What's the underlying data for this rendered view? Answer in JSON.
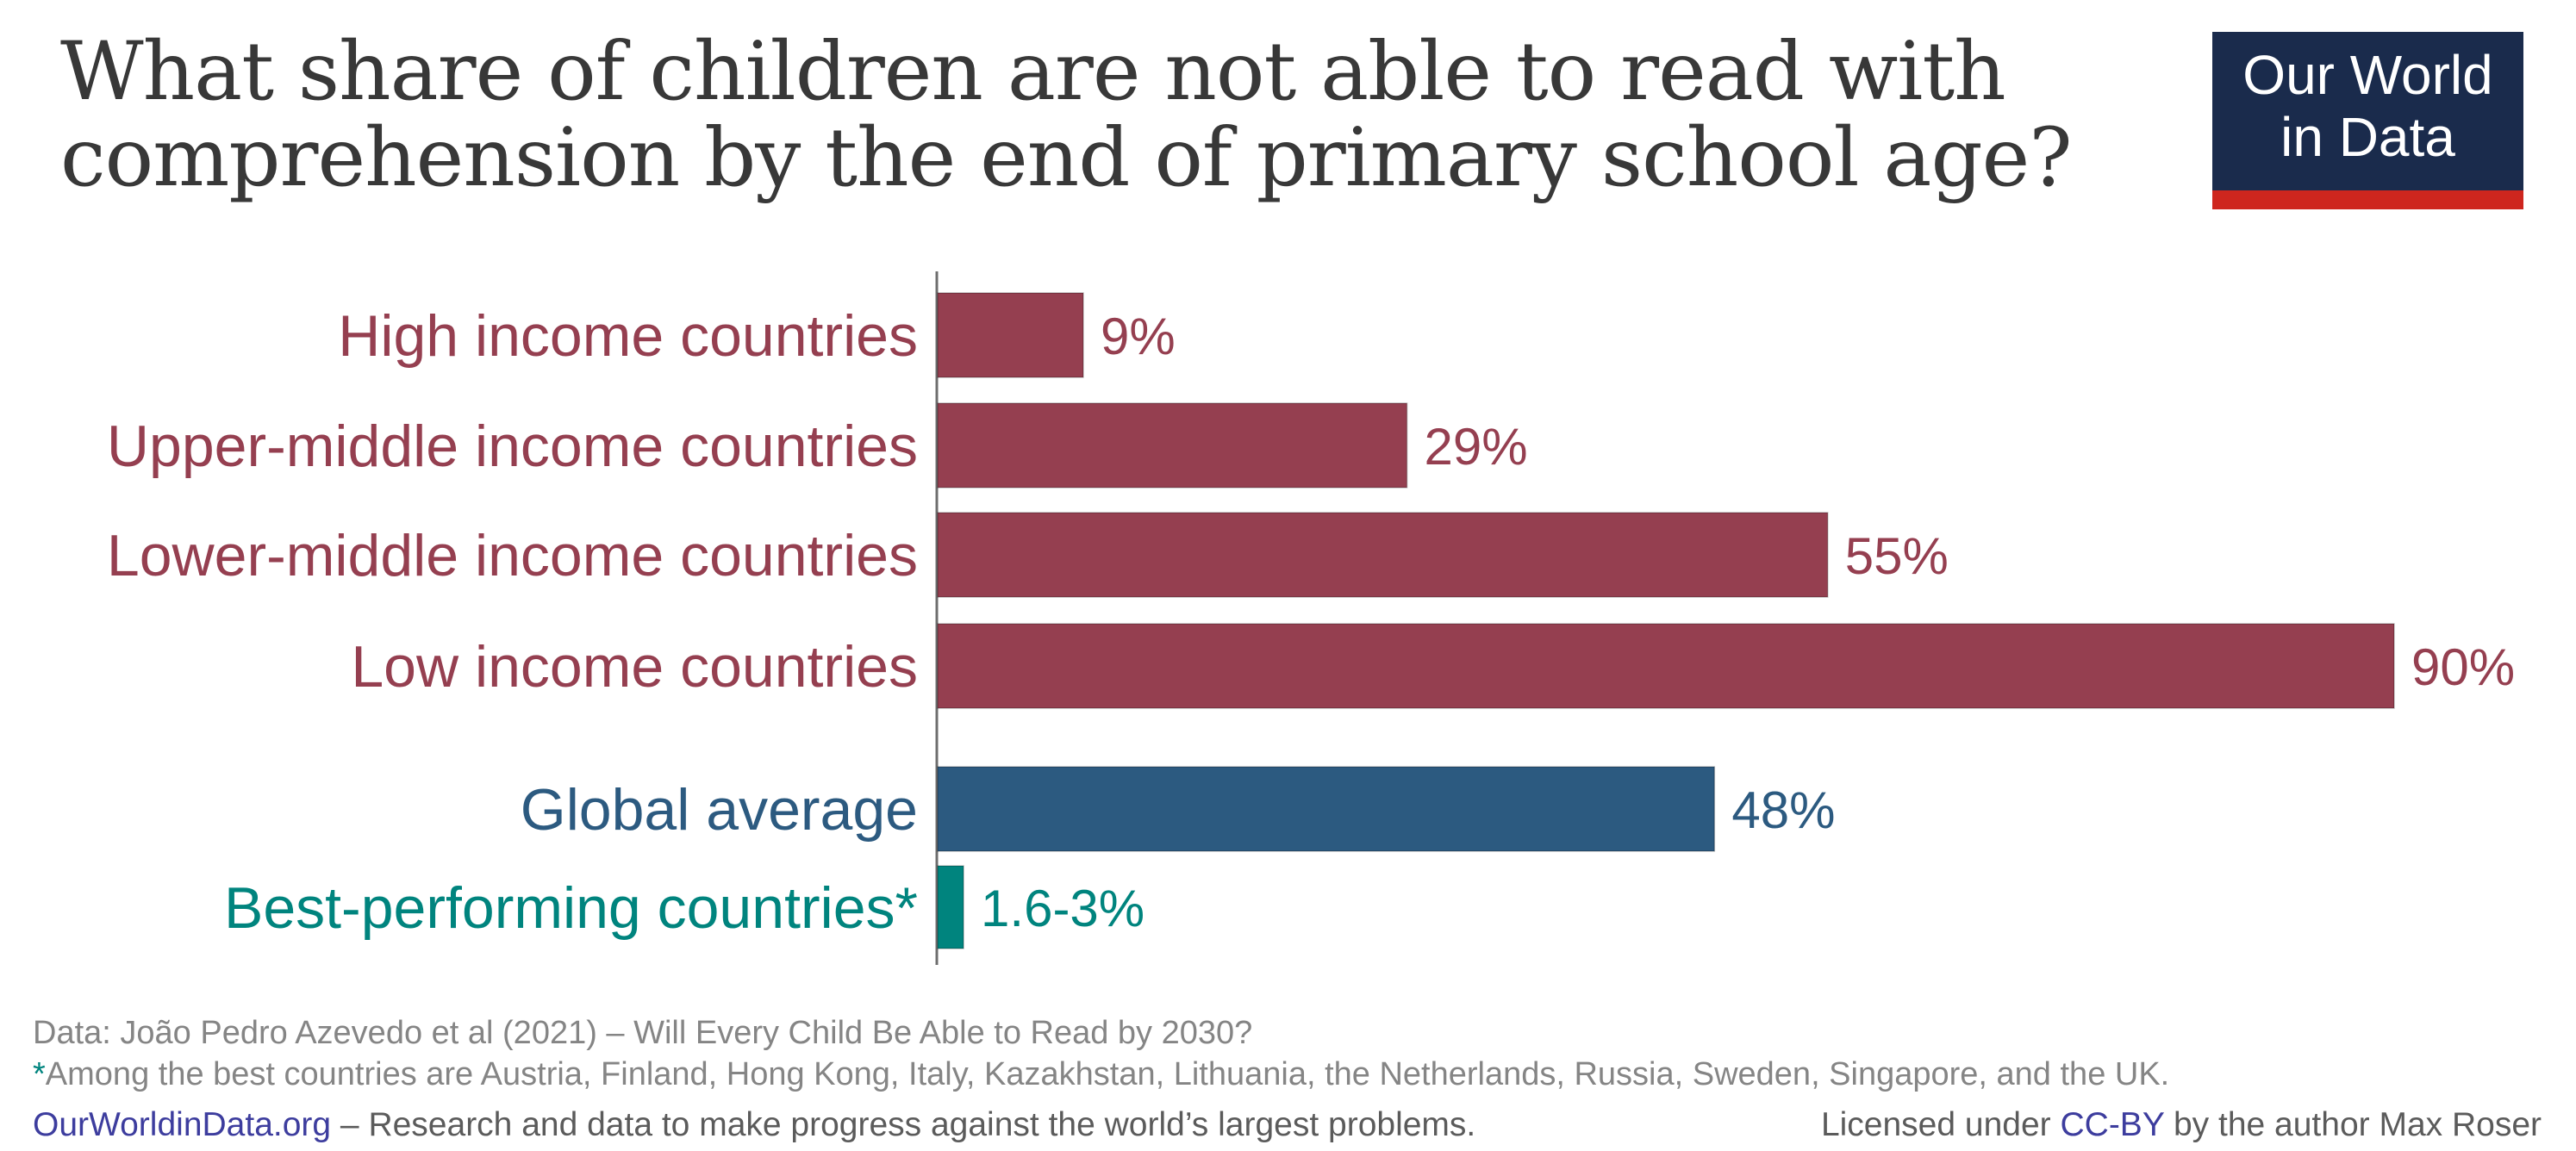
{
  "title": "What share of children are not able to read with comprehension by the end of primary school age?",
  "logo": {
    "line1": "Our World",
    "line2": "in Data"
  },
  "colors": {
    "income": "#953f50",
    "global": "#2c5a80",
    "best": "#00847e",
    "axis": "#6e6e6e"
  },
  "chart_data": {
    "type": "bar",
    "orientation": "horizontal",
    "xlim": [
      0,
      90
    ],
    "bars": [
      {
        "label": "High income countries",
        "value": 9,
        "value_label": "9%",
        "group": "income"
      },
      {
        "label": "Upper-middle income countries",
        "value": 29,
        "value_label": "29%",
        "group": "income"
      },
      {
        "label": "Lower-middle income countries",
        "value": 55,
        "value_label": "55%",
        "group": "income"
      },
      {
        "label": "Low income countries",
        "value": 90,
        "value_label": "90%",
        "group": "income"
      },
      {
        "label": "Global average",
        "value": 48,
        "value_label": "48%",
        "group": "global"
      },
      {
        "label": "Best-performing countries*",
        "value": 1.6,
        "value_label": "1.6-3%",
        "group": "best"
      }
    ]
  },
  "footer": {
    "source": "Data: João Pedro Azevedo et al (2021) – Will Every Child Be Able to Read by 2030?",
    "note_marker": "*",
    "note": "Among the best countries are Austria, Finland, Hong Kong, Italy, Kazakhstan, Lithuania, the Netherlands, Russia, Sweden, Singapore, and the UK.",
    "site": "OurWorldinData.org",
    "tagline": " – Research and data to make progress against the world’s largest problems.",
    "license_prefix": "Licensed under ",
    "license": "CC-BY",
    "license_suffix": " by the author Max Roser"
  }
}
